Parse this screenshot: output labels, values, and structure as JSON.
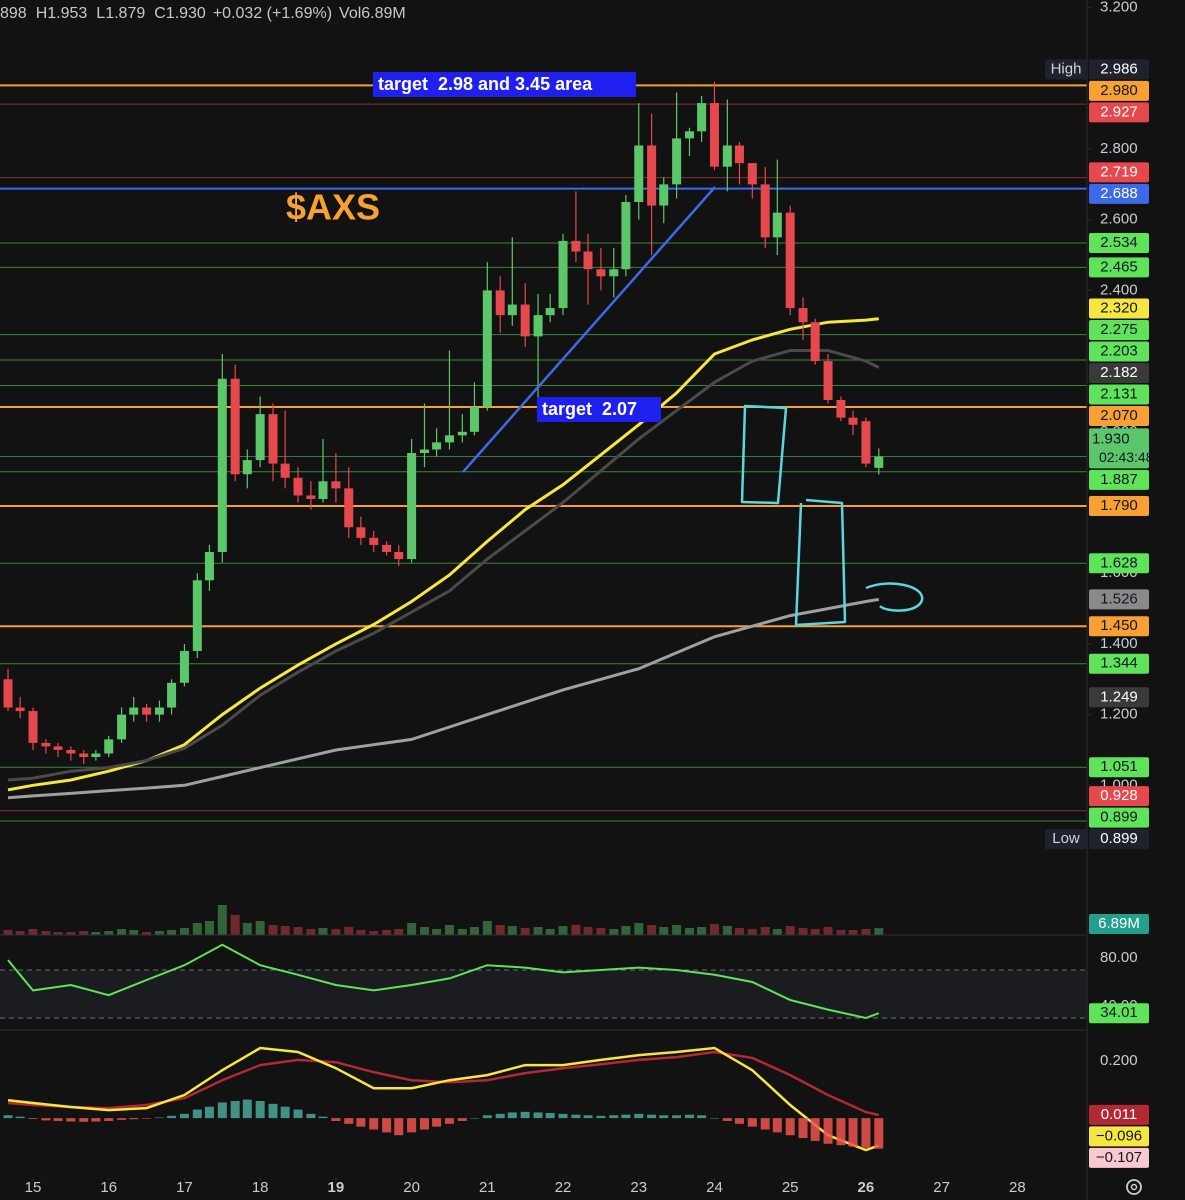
{
  "header": {
    "pieces": [
      "898",
      "H1.953",
      "L1.879",
      "C1.930",
      "+0.032 (+1.69%)",
      "Vol6.89M"
    ]
  },
  "annotations": {
    "symbol": "$AXS",
    "target_high": "target  2.98 and 3.45 area",
    "target_low": "target  2.07"
  },
  "chart_data": {
    "type": "candlestick",
    "xlim": [
      14.564,
      28.92
    ],
    "xticks": [
      15,
      16,
      17,
      18,
      19,
      20,
      21,
      22,
      23,
      24,
      25,
      26,
      27,
      28
    ],
    "bold_xticks": [
      19,
      26
    ],
    "ylim": [
      0.6897,
      3.2215
    ],
    "yticks": [
      {
        "value": 3.2,
        "label": "3.200"
      },
      {
        "value": 2.8,
        "label": "2.800"
      },
      {
        "value": 2.6,
        "label": "2.600"
      },
      {
        "value": 2.4,
        "label": "2.400"
      },
      {
        "value": 2,
        "label": "2.000"
      },
      {
        "value": 1.6,
        "label": "1.600"
      },
      {
        "value": 1.4,
        "label": "1.400"
      },
      {
        "value": 1.2,
        "label": "1.200"
      },
      {
        "value": 1,
        "label": "1.000"
      }
    ],
    "up_color": "#5cc76a",
    "down_color": "#e5484d",
    "candles": {
      "x": [
        14.67,
        14.83,
        15,
        15.17,
        15.33,
        15.5,
        15.67,
        15.83,
        16,
        16.17,
        16.33,
        16.5,
        16.67,
        16.83,
        17,
        17.17,
        17.33,
        17.5,
        17.67,
        17.83,
        18,
        18.17,
        18.33,
        18.5,
        18.67,
        18.83,
        19,
        19.17,
        19.33,
        19.5,
        19.67,
        19.83,
        20,
        20.17,
        20.33,
        20.5,
        20.67,
        20.83,
        21,
        21.17,
        21.33,
        21.5,
        21.67,
        21.83,
        22,
        22.17,
        22.33,
        22.5,
        22.67,
        22.83,
        23,
        23.17,
        23.33,
        23.5,
        23.67,
        23.83,
        24,
        24.17,
        24.33,
        24.5,
        24.67,
        24.83,
        25,
        25.17,
        25.33,
        25.5,
        25.67,
        25.83,
        26,
        26.17
      ],
      "open": [
        1.3,
        1.22,
        1.21,
        1.12,
        1.11,
        1.1,
        1.09,
        1.08,
        1.09,
        1.13,
        1.2,
        1.22,
        1.2,
        1.22,
        1.29,
        1.38,
        1.58,
        1.66,
        2.15,
        1.88,
        1.92,
        2.05,
        1.91,
        1.87,
        1.82,
        1.81,
        1.86,
        1.84,
        1.73,
        1.7,
        1.68,
        1.66,
        1.64,
        1.94,
        1.95,
        1.97,
        1.99,
        2.0,
        2.07,
        2.4,
        2.33,
        2.36,
        2.27,
        2.33,
        2.35,
        2.54,
        2.51,
        2.46,
        2.44,
        2.46,
        2.65,
        2.81,
        2.64,
        2.7,
        2.83,
        2.85,
        2.93,
        2.75,
        2.81,
        2.76,
        2.7,
        2.55,
        2.62,
        2.35,
        2.31,
        2.2,
        2.09,
        2.04,
        2.03,
        1.898
      ],
      "high": [
        1.33,
        1.25,
        1.22,
        1.13,
        1.12,
        1.11,
        1.1,
        1.1,
        1.14,
        1.22,
        1.25,
        1.23,
        1.24,
        1.3,
        1.4,
        1.6,
        1.68,
        2.22,
        2.19,
        1.95,
        2.1,
        2.08,
        2.06,
        1.9,
        1.86,
        1.98,
        1.94,
        1.9,
        1.76,
        1.72,
        1.69,
        1.68,
        1.98,
        2.08,
        2.01,
        2.23,
        2.05,
        2.14,
        2.48,
        2.44,
        2.55,
        2.42,
        2.39,
        2.39,
        2.56,
        2.68,
        2.56,
        2.52,
        2.52,
        2.67,
        2.93,
        2.9,
        2.72,
        2.96,
        2.86,
        2.95,
        2.99,
        2.94,
        2.82,
        2.76,
        2.75,
        2.77,
        2.64,
        2.38,
        2.32,
        2.22,
        2.1,
        2.06,
        2.04,
        1.953
      ],
      "low": [
        1.21,
        1.19,
        1.1,
        1.09,
        1.08,
        1.07,
        1.06,
        1.07,
        1.08,
        1.12,
        1.18,
        1.18,
        1.18,
        1.2,
        1.28,
        1.36,
        1.55,
        1.63,
        1.86,
        1.84,
        1.9,
        1.86,
        1.84,
        1.8,
        1.78,
        1.8,
        1.8,
        1.7,
        1.68,
        1.66,
        1.65,
        1.62,
        1.63,
        1.9,
        1.93,
        1.95,
        1.97,
        1.99,
        2.06,
        2.28,
        2.3,
        2.24,
        2.08,
        2.31,
        2.33,
        2.48,
        2.36,
        2.4,
        2.38,
        2.44,
        2.6,
        2.5,
        2.59,
        2.66,
        2.78,
        2.82,
        2.74,
        2.68,
        2.7,
        2.66,
        2.52,
        2.5,
        2.33,
        2.26,
        2.19,
        2.08,
        2.03,
        1.99,
        1.9,
        1.879
      ],
      "close": [
        1.22,
        1.21,
        1.12,
        1.11,
        1.1,
        1.09,
        1.08,
        1.09,
        1.13,
        1.2,
        1.22,
        1.2,
        1.22,
        1.29,
        1.38,
        1.58,
        1.66,
        2.15,
        1.88,
        1.92,
        2.05,
        1.91,
        1.87,
        1.82,
        1.81,
        1.86,
        1.84,
        1.73,
        1.7,
        1.68,
        1.66,
        1.64,
        1.94,
        1.95,
        1.97,
        1.99,
        2.0,
        2.07,
        2.4,
        2.33,
        2.36,
        2.27,
        2.33,
        2.35,
        2.54,
        2.51,
        2.46,
        2.44,
        2.46,
        2.65,
        2.81,
        2.64,
        2.7,
        2.83,
        2.85,
        2.93,
        2.75,
        2.81,
        2.76,
        2.7,
        2.55,
        2.62,
        2.35,
        2.31,
        2.2,
        2.09,
        2.04,
        2.02,
        1.91,
        1.93
      ]
    },
    "indicator_x": [
      14.67,
      15,
      15.5,
      16,
      16.5,
      17,
      17.5,
      18,
      18.5,
      19,
      19.5,
      20,
      20.5,
      21,
      21.5,
      22,
      22.5,
      23,
      23.5,
      24,
      24.5,
      25,
      25.5,
      26,
      26.17
    ],
    "moving_averages": [
      {
        "color": "#f5e642",
        "values": [
          0.987,
          1.0,
          1.015,
          1.04,
          1.07,
          1.115,
          1.2,
          1.275,
          1.34,
          1.4,
          1.455,
          1.52,
          1.595,
          1.69,
          1.78,
          1.85,
          1.935,
          2.02,
          2.11,
          2.22,
          2.26,
          2.29,
          2.31,
          2.316,
          2.32
        ]
      },
      {
        "color": "#4a4a4a",
        "values": [
          1.015,
          1.02,
          1.04,
          1.05,
          1.07,
          1.105,
          1.17,
          1.255,
          1.32,
          1.38,
          1.43,
          1.49,
          1.55,
          1.64,
          1.72,
          1.8,
          1.89,
          1.98,
          2.06,
          2.14,
          2.2,
          2.23,
          2.23,
          2.2,
          2.182
        ]
      },
      {
        "color": "#a0a0a0",
        "values": [
          0.965,
          0.97,
          0.977,
          0.985,
          0.992,
          1.0,
          1.025,
          1.05,
          1.075,
          1.1,
          1.115,
          1.13,
          1.165,
          1.2,
          1.235,
          1.27,
          1.3,
          1.33,
          1.375,
          1.42,
          1.45,
          1.48,
          1.5,
          1.52,
          1.526
        ]
      }
    ],
    "levels": [
      {
        "value": 2.986,
        "label": "2.986",
        "tag": "High",
        "color": "#1e222d",
        "line": false
      },
      {
        "value": 2.98,
        "label": "2.980",
        "color": "#f7a034",
        "line": true
      },
      {
        "value": 2.927,
        "label": "2.927",
        "color": "#e5484d",
        "line": true
      },
      {
        "value": 2.719,
        "label": "2.719",
        "color": "#e5484d",
        "line": true
      },
      {
        "value": 2.688,
        "label": "2.688",
        "color": "#3d6ae8",
        "line": true
      },
      {
        "value": 2.534,
        "label": "2.534",
        "color": "#5ee35a",
        "line": true
      },
      {
        "value": 2.465,
        "label": "2.465",
        "color": "#5ee35a",
        "line": true
      },
      {
        "value": 2.32,
        "label": "2.320",
        "color": "#f5e642",
        "line": false
      },
      {
        "value": 2.275,
        "label": "2.275",
        "color": "#5ee35a",
        "line": true
      },
      {
        "value": 2.203,
        "label": "2.203",
        "color": "#5ee35a",
        "line": true
      },
      {
        "value": 2.182,
        "label": "2.182",
        "color": "#3a3a3a",
        "line": false
      },
      {
        "value": 2.131,
        "label": "2.131",
        "color": "#5ee35a",
        "line": true
      },
      {
        "value": 2.07,
        "label": "2.070",
        "color": "#f7a034",
        "line": true
      },
      {
        "value": 1.93,
        "label": "1.930",
        "sub": "02:43:48",
        "color": "#5cc76a",
        "line": true
      },
      {
        "value": 1.887,
        "label": "1.887",
        "color": "#5ee35a",
        "line": true
      },
      {
        "value": 1.79,
        "label": "1.790",
        "color": "#f7a034",
        "line": true
      },
      {
        "value": 1.628,
        "label": "1.628",
        "color": "#5ee35a",
        "line": true
      },
      {
        "value": 1.526,
        "label": "1.526",
        "color": "#8a8a8a",
        "line": false
      },
      {
        "value": 1.45,
        "label": "1.450",
        "color": "#f7a034",
        "line": true
      },
      {
        "value": 1.344,
        "label": "1.344",
        "color": "#5ee35a",
        "line": true
      },
      {
        "value": 1.249,
        "label": "1.249",
        "color": "#3a3a3a",
        "line": false
      },
      {
        "value": 1.051,
        "label": "1.051",
        "color": "#5ee35a",
        "line": true
      },
      {
        "value": 0.928,
        "label": "0.928",
        "color": "#e5484d",
        "line": true
      },
      {
        "value": 0.899,
        "label": "0.899",
        "color": "#5ee35a",
        "line": true
      },
      {
        "value": 0.899,
        "label": "0.899",
        "tag": "Low",
        "color": "#1e222d",
        "line": false
      }
    ],
    "volume": {
      "ylim": [
        0,
        40
      ],
      "label_color": "#22a08c",
      "last_label": "6.89M",
      "values": [
        5,
        4,
        6,
        4,
        3,
        3,
        4,
        3,
        4,
        6,
        5,
        3,
        4,
        5,
        7,
        12,
        14,
        30,
        20,
        12,
        14,
        10,
        9,
        8,
        6,
        7,
        6,
        8,
        5,
        4,
        5,
        6,
        12,
        8,
        6,
        10,
        6,
        8,
        14,
        10,
        9,
        7,
        8,
        6,
        9,
        10,
        8,
        7,
        6,
        9,
        12,
        10,
        8,
        10,
        7,
        8,
        11,
        9,
        7,
        6,
        8,
        6,
        9,
        7,
        6,
        8,
        5,
        5,
        6,
        6.89
      ]
    },
    "rsi": {
      "ylim": [
        20,
        99.2
      ],
      "yticks": [
        {
          "value": 80,
          "label": "80.00"
        },
        {
          "value": 40,
          "label": "40.00"
        }
      ],
      "bands": [
        70,
        30
      ],
      "color": "#5ee35a",
      "values": [
        78.3,
        53,
        57.5,
        49,
        61.7,
        74,
        91,
        74,
        66,
        57.5,
        53,
        57.5,
        63,
        74,
        72,
        68,
        70,
        72,
        70,
        66,
        60,
        45,
        37,
        30,
        34.01
      ]
    },
    "macd": {
      "ylim": [
        -0.21,
        0.309
      ],
      "yticks": [
        {
          "value": 0.2,
          "label": "0.200"
        }
      ],
      "macd_line": {
        "color": "#f5e642",
        "last_label": "−0.096",
        "values": [
          0.063,
          0.053,
          0.039,
          0.028,
          0.035,
          0.081,
          0.168,
          0.246,
          0.232,
          0.175,
          0.105,
          0.105,
          0.133,
          0.151,
          0.186,
          0.186,
          0.204,
          0.221,
          0.232,
          0.246,
          0.168,
          0.046,
          -0.06,
          -0.112,
          -0.096
        ]
      },
      "signal_line": {
        "color": "#b22833",
        "values": [
          0.053,
          0.046,
          0.039,
          0.035,
          0.046,
          0.07,
          0.133,
          0.186,
          0.204,
          0.196,
          0.161,
          0.133,
          0.126,
          0.133,
          0.158,
          0.175,
          0.189,
          0.204,
          0.214,
          0.232,
          0.211,
          0.151,
          0.081,
          0.021,
          0.011
        ]
      },
      "histogram": {
        "up_color": "#4aa89a",
        "down_color": "#ef5350",
        "label_color": "#f8c9cf",
        "last_label": "−0.107",
        "values": [
          0.01,
          0.005,
          -0.003,
          -0.008,
          -0.01,
          -0.012,
          -0.013,
          -0.012,
          -0.01,
          -0.006,
          -0.004,
          -0.002,
          0.002,
          0.008,
          0.015,
          0.03,
          0.04,
          0.055,
          0.06,
          0.065,
          0.06,
          0.05,
          0.04,
          0.03,
          0.015,
          0.005,
          -0.01,
          -0.02,
          -0.03,
          -0.04,
          -0.05,
          -0.06,
          -0.05,
          -0.04,
          -0.03,
          -0.02,
          -0.01,
          0.0,
          0.01,
          0.015,
          0.02,
          0.022,
          0.02,
          0.018,
          0.015,
          0.012,
          0.01,
          0.008,
          0.01,
          0.012,
          0.015,
          0.012,
          0.01,
          0.01,
          0.012,
          0.01,
          0.0,
          -0.01,
          -0.02,
          -0.03,
          -0.04,
          -0.05,
          -0.06,
          -0.07,
          -0.08,
          -0.09,
          -0.095,
          -0.1,
          -0.104,
          -0.107
        ]
      }
    }
  }
}
